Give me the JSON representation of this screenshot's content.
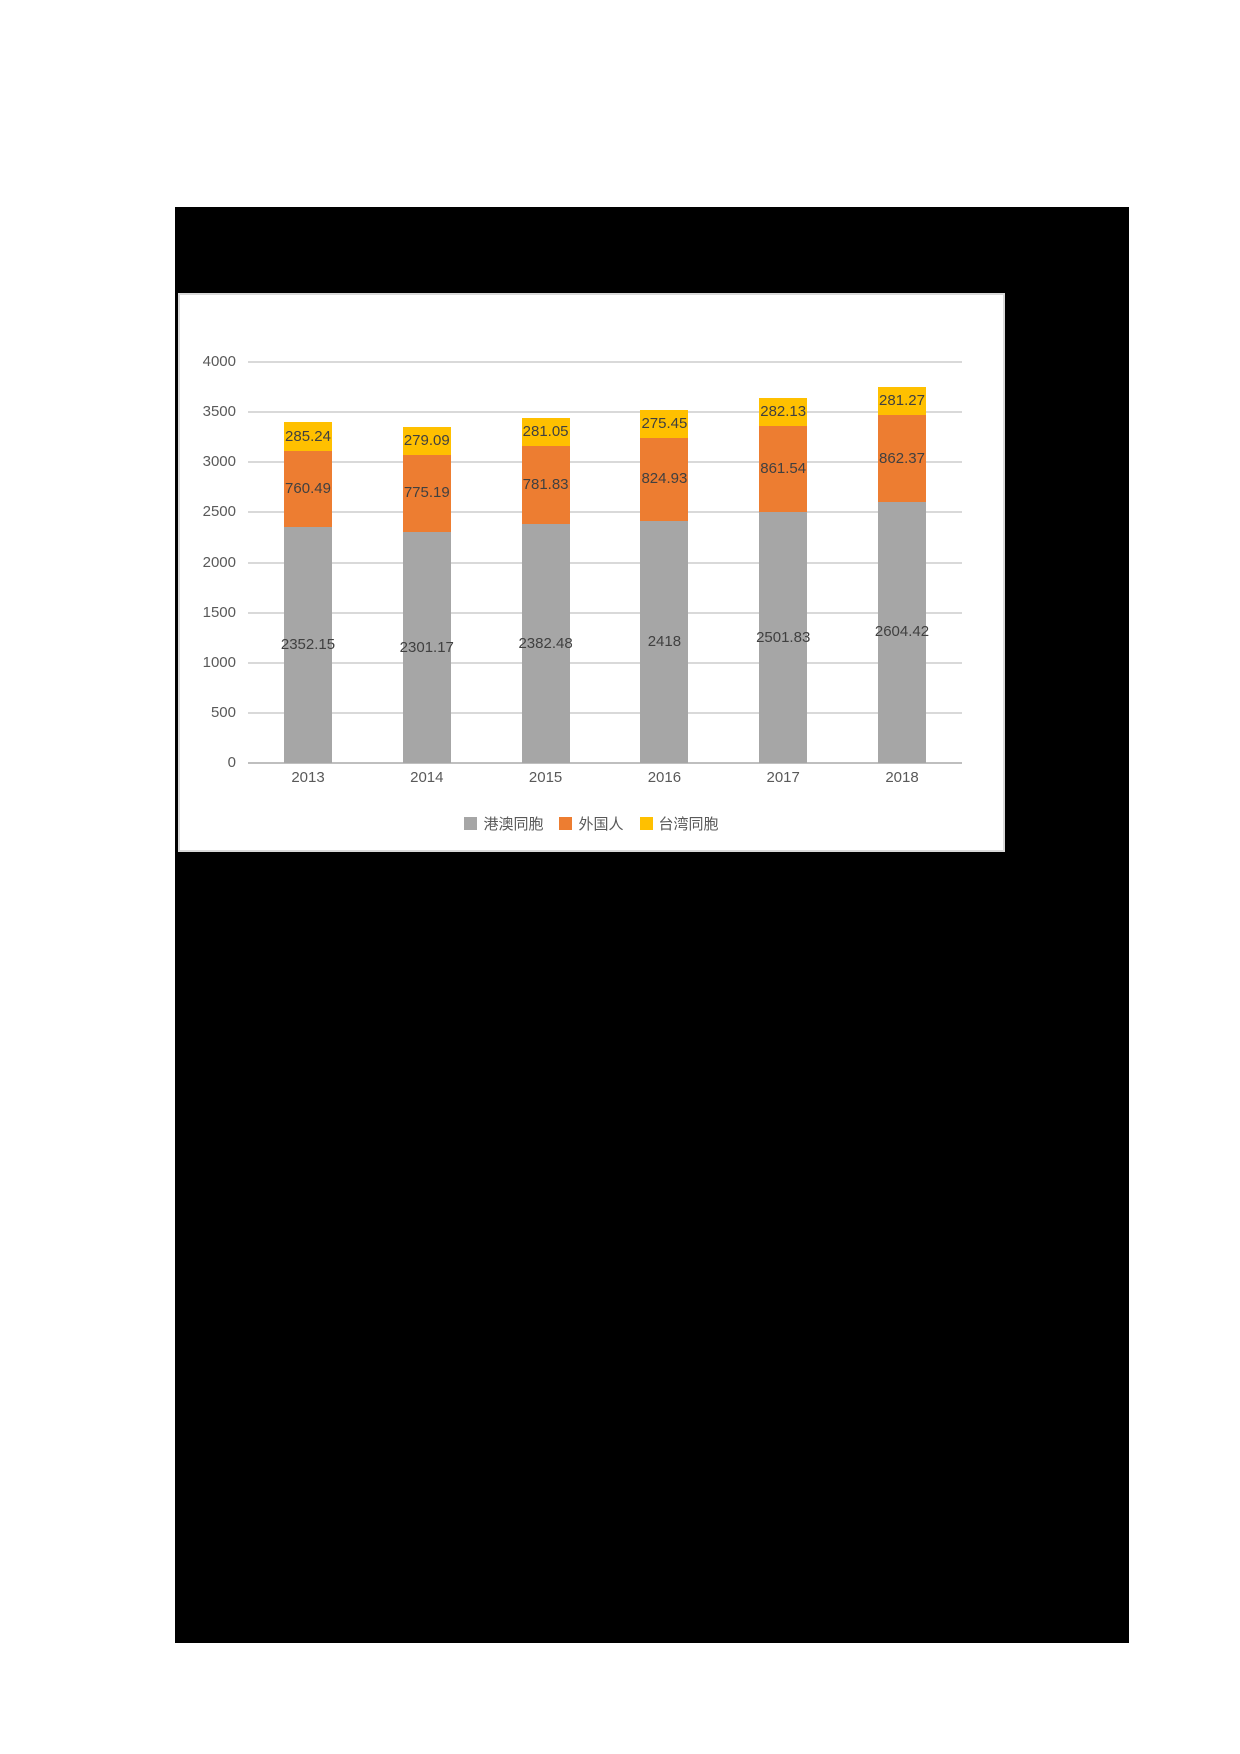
{
  "page": {
    "background_color": "#ffffff",
    "masked_region_color": "#000000"
  },
  "chart_data": {
    "type": "bar",
    "stacked": true,
    "orientation": "vertical",
    "categories": [
      "2013",
      "2014",
      "2015",
      "2016",
      "2017",
      "2018"
    ],
    "series": [
      {
        "name": "港澳同胞",
        "color": "#a6a6a6",
        "values": [
          2352.15,
          2301.17,
          2382.48,
          2418,
          2501.83,
          2604.42
        ]
      },
      {
        "name": "外国人",
        "color": "#ed7d31",
        "values": [
          760.49,
          775.19,
          781.83,
          824.93,
          861.54,
          862.37
        ]
      },
      {
        "name": "台湾同胞",
        "color": "#ffc000",
        "values": [
          285.24,
          279.09,
          281.05,
          275.45,
          282.13,
          281.27
        ]
      }
    ],
    "ylim": [
      0,
      4000
    ],
    "ytick_step": 500,
    "ytick_labels": [
      "0",
      "500",
      "1000",
      "1500",
      "2000",
      "2500",
      "3000",
      "3500",
      "4000"
    ],
    "grid": true,
    "data_labels": "inside-center",
    "legend_position": "bottom",
    "colors": {
      "gridline": "#d9d9d9",
      "axis_line": "#bfbfbf",
      "tick_label": "#595959",
      "data_label": "#404040",
      "legend_label": "#595959",
      "panel_background": "#ffffff",
      "panel_border": "#d9d9d9"
    }
  }
}
